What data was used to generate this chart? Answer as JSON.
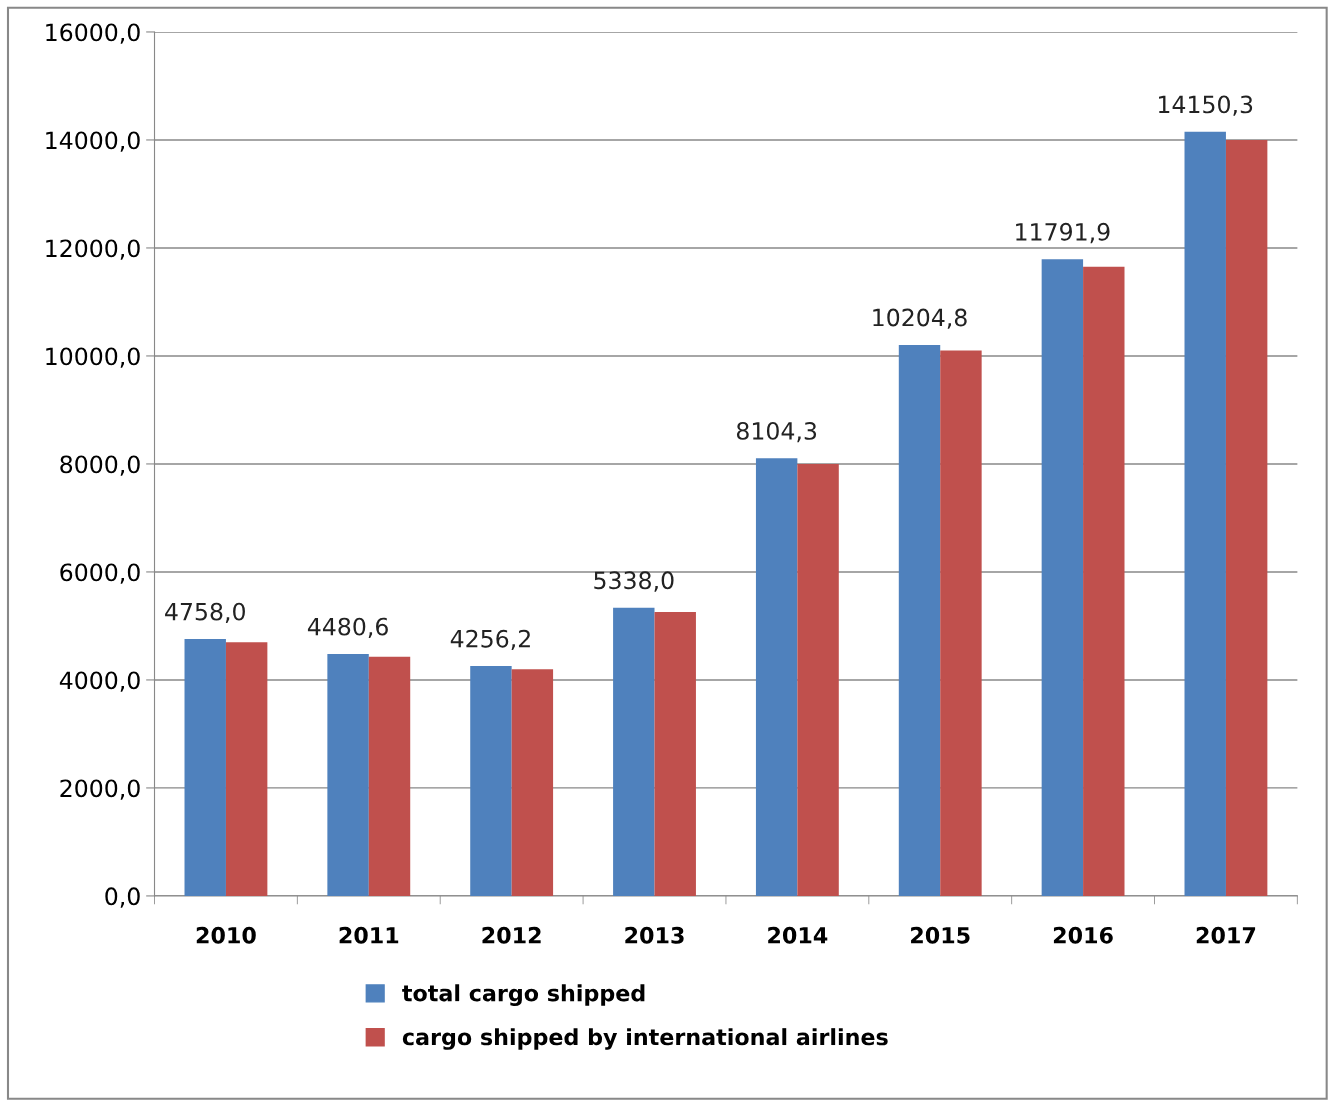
{
  "chart_data": {
    "type": "bar",
    "categories": [
      "2010",
      "2011",
      "2012",
      "2013",
      "2014",
      "2015",
      "2016",
      "2017"
    ],
    "series": [
      {
        "name": "total cargo shipped",
        "color": "#4f81bd",
        "values": [
          4758.0,
          4480.6,
          4256.2,
          5338.0,
          8104.3,
          10204.8,
          11791.9,
          14150.3
        ],
        "value_labels": [
          "4758,0",
          "4480,6",
          "4256,2",
          "5338,0",
          "8104,3",
          "10204,8",
          "11791,9",
          "14150,3"
        ]
      },
      {
        "name": "cargo shipped by international airlines",
        "color": "#c0504d",
        "values": [
          4700,
          4430,
          4200,
          5260,
          8000,
          10100,
          11650,
          14000
        ]
      }
    ],
    "ylim": [
      0,
      16000
    ],
    "yticks": [
      {
        "value": 0,
        "label": "0,0"
      },
      {
        "value": 2000,
        "label": "2000,0"
      },
      {
        "value": 4000,
        "label": "4000,0"
      },
      {
        "value": 6000,
        "label": "6000,0"
      },
      {
        "value": 8000,
        "label": "8000,0"
      },
      {
        "value": 10000,
        "label": "10000,0"
      },
      {
        "value": 12000,
        "label": "12000,0"
      },
      {
        "value": 14000,
        "label": "14000,0"
      },
      {
        "value": 16000,
        "label": "16000,0"
      }
    ],
    "grid": "y",
    "legend": "bottom"
  }
}
